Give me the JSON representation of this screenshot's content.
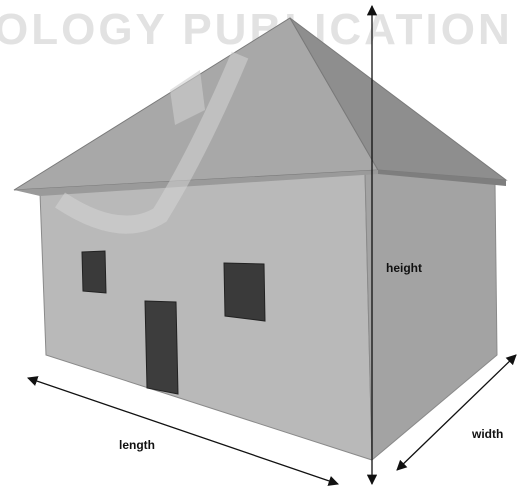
{
  "watermark": "OLOGY PUBLICATION",
  "dimensions": {
    "height": "height",
    "length": "length",
    "width": "width"
  }
}
